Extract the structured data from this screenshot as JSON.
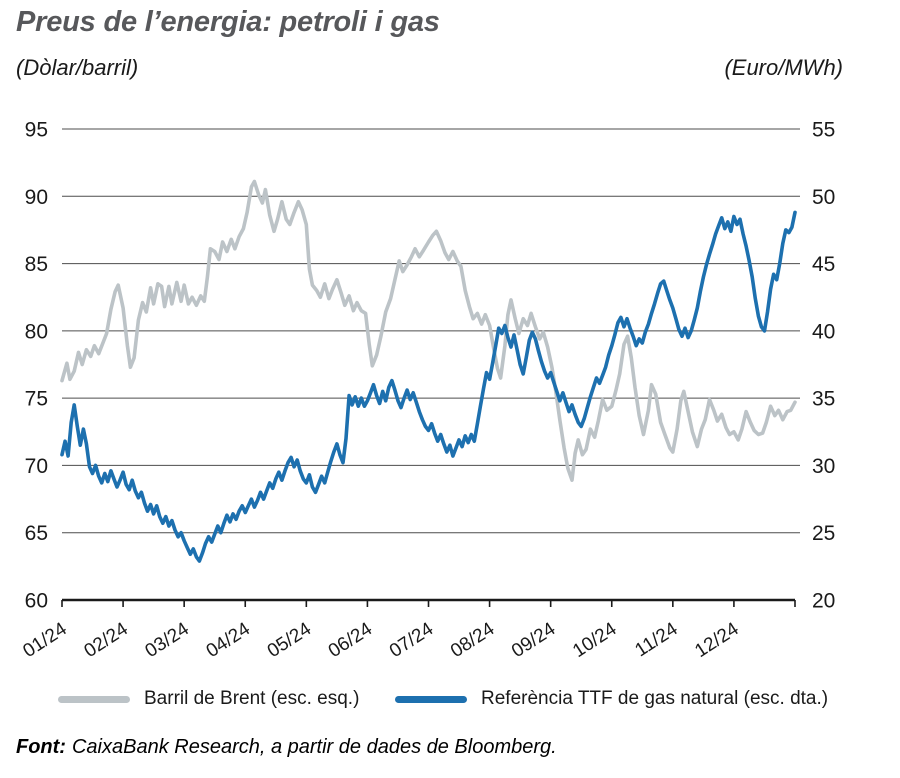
{
  "header": {
    "title": "Preus de l’energia: petroli i gas",
    "unit_left": "(Dòlar/barril)",
    "unit_right": "(Euro/MWh)"
  },
  "chart_data": {
    "type": "line",
    "title": "Preus de l’energia: petroli i gas",
    "subtitle_left": "(Dòlar/barril)",
    "subtitle_right": "(Euro/MWh)",
    "grid": "horizontal",
    "legend_position": "bottom",
    "x_axis": {
      "unit": "month of 2024 (fractional month index 0-12)",
      "tick_labels": [
        "01/24",
        "02/24",
        "03/24",
        "04/24",
        "05/24",
        "06/24",
        "07/24",
        "08/24",
        "09/24",
        "10/24",
        "11/24",
        "12/24"
      ]
    },
    "left_axis": {
      "label": "(Dòlar/barril)",
      "min": 60,
      "max": 95,
      "ticks": [
        60,
        65,
        70,
        75,
        80,
        85,
        90,
        95
      ]
    },
    "right_axis": {
      "label": "(Euro/MWh)",
      "min": 20,
      "max": 55,
      "ticks": [
        20,
        25,
        30,
        35,
        40,
        45,
        50,
        55
      ]
    },
    "series": [
      {
        "name": "Barril de Brent (esc. esq.)",
        "axis": "left",
        "color": "#bcc3c7",
        "points_format": "flat [month,value,...]",
        "points": [
          0,
          76.3,
          0.08,
          77.6,
          0.13,
          76.4,
          0.2,
          77.0,
          0.27,
          78.4,
          0.33,
          77.5,
          0.4,
          78.6,
          0.47,
          78.1,
          0.53,
          78.9,
          0.6,
          78.3,
          0.67,
          79.1,
          0.73,
          79.8,
          0.8,
          81.6,
          0.87,
          82.9,
          0.92,
          83.4,
          1.0,
          81.7,
          1.07,
          78.9,
          1.12,
          77.3,
          1.18,
          78.0,
          1.25,
          80.8,
          1.32,
          82.1,
          1.38,
          81.4,
          1.45,
          83.2,
          1.5,
          82.0,
          1.57,
          83.5,
          1.63,
          83.3,
          1.68,
          81.8,
          1.75,
          83.3,
          1.8,
          82.0,
          1.88,
          83.6,
          1.95,
          82.2,
          2.0,
          83.4,
          2.07,
          82.0,
          2.13,
          82.5,
          2.2,
          81.9,
          2.27,
          82.6,
          2.33,
          82.2,
          2.38,
          84.0,
          2.43,
          86.1,
          2.5,
          85.9,
          2.57,
          85.3,
          2.63,
          86.6,
          2.7,
          85.9,
          2.77,
          86.8,
          2.83,
          86.1,
          2.9,
          87.0,
          2.97,
          87.6,
          3.03,
          88.8,
          3.1,
          90.7,
          3.15,
          91.1,
          3.22,
          90.1,
          3.28,
          89.5,
          3.33,
          90.5,
          3.4,
          88.6,
          3.47,
          87.4,
          3.53,
          88.3,
          3.6,
          89.6,
          3.67,
          88.3,
          3.73,
          87.9,
          3.8,
          88.8,
          3.87,
          89.6,
          3.93,
          89.0,
          4.0,
          87.9,
          4.05,
          84.6,
          4.1,
          83.4,
          4.17,
          83.0,
          4.23,
          82.5,
          4.3,
          83.5,
          4.37,
          82.4,
          4.43,
          83.1,
          4.5,
          83.8,
          4.57,
          82.8,
          4.63,
          81.9,
          4.7,
          82.6,
          4.77,
          81.5,
          4.83,
          82.1,
          4.9,
          81.5,
          4.97,
          81.3,
          5.03,
          79.0,
          5.08,
          77.4,
          5.15,
          78.2,
          5.22,
          79.6,
          5.3,
          81.4,
          5.38,
          82.4,
          5.45,
          83.8,
          5.52,
          85.2,
          5.58,
          84.4,
          5.65,
          84.9,
          5.72,
          85.5,
          5.78,
          86.1,
          5.85,
          85.5,
          5.92,
          86.0,
          6.0,
          86.6,
          6.07,
          87.1,
          6.13,
          87.4,
          6.2,
          86.7,
          6.27,
          85.8,
          6.33,
          85.3,
          6.4,
          85.9,
          6.47,
          85.2,
          6.53,
          84.8,
          6.6,
          83.0,
          6.67,
          81.8,
          6.73,
          80.9,
          6.8,
          81.3,
          6.87,
          80.5,
          6.93,
          81.2,
          7.0,
          80.4,
          7.07,
          78.6,
          7.13,
          77.2,
          7.18,
          76.5,
          7.25,
          78.9,
          7.3,
          81.2,
          7.35,
          82.3,
          7.42,
          80.9,
          7.48,
          79.8,
          7.55,
          80.9,
          7.62,
          80.4,
          7.68,
          81.3,
          7.75,
          80.3,
          7.82,
          79.4,
          7.88,
          79.9,
          7.95,
          78.8,
          8.02,
          77.3,
          8.08,
          75.6,
          8.15,
          73.4,
          8.22,
          71.3,
          8.28,
          69.8,
          8.35,
          68.9,
          8.4,
          70.9,
          8.45,
          71.9,
          8.52,
          70.8,
          8.58,
          71.2,
          8.65,
          72.7,
          8.72,
          72.1,
          8.78,
          73.3,
          8.85,
          74.9,
          8.92,
          74.1,
          9.0,
          74.4,
          9.07,
          75.6,
          9.13,
          76.8,
          9.2,
          79.0,
          9.26,
          79.6,
          9.32,
          78.0,
          9.38,
          75.8,
          9.45,
          73.7,
          9.52,
          72.3,
          9.6,
          74.1,
          9.65,
          76.0,
          9.72,
          75.3,
          9.8,
          73.2,
          9.87,
          72.3,
          9.95,
          71.3,
          10.0,
          71.0,
          10.07,
          72.7,
          10.13,
          74.8,
          10.18,
          75.5,
          10.25,
          74.0,
          10.32,
          72.5,
          10.4,
          71.4,
          10.47,
          72.7,
          10.53,
          73.4,
          10.6,
          74.9,
          10.67,
          74.1,
          10.73,
          73.3,
          10.8,
          73.8,
          10.87,
          72.8,
          10.93,
          72.3,
          11.0,
          72.5,
          11.07,
          71.9,
          11.13,
          72.7,
          11.2,
          74.0,
          11.27,
          73.2,
          11.33,
          72.6,
          11.4,
          72.3,
          11.47,
          72.4,
          11.53,
          73.2,
          11.6,
          74.4,
          11.67,
          73.7,
          11.73,
          74.1,
          11.8,
          73.4,
          11.87,
          74.0,
          11.93,
          74.1,
          12.0,
          74.7
        ]
      },
      {
        "name": "Referència TTF de gas natural (esc. dta.)",
        "axis": "right",
        "color": "#1d70af",
        "points_format": "flat [month,value,...]",
        "points": [
          0,
          30.8,
          0.05,
          31.8,
          0.1,
          30.7,
          0.15,
          33.2,
          0.2,
          34.5,
          0.25,
          32.9,
          0.3,
          31.5,
          0.35,
          32.7,
          0.4,
          31.6,
          0.45,
          29.9,
          0.5,
          29.4,
          0.55,
          30.0,
          0.6,
          29.2,
          0.65,
          28.7,
          0.7,
          29.4,
          0.75,
          28.8,
          0.8,
          29.6,
          0.85,
          29.0,
          0.9,
          28.4,
          0.95,
          28.9,
          1.0,
          29.5,
          1.05,
          28.6,
          1.1,
          28.2,
          1.15,
          28.9,
          1.2,
          28.1,
          1.25,
          27.6,
          1.3,
          28.0,
          1.35,
          27.2,
          1.4,
          26.6,
          1.45,
          27.1,
          1.5,
          26.4,
          1.55,
          27.0,
          1.6,
          26.2,
          1.65,
          25.7,
          1.7,
          26.2,
          1.75,
          25.5,
          1.8,
          25.9,
          1.85,
          25.2,
          1.9,
          24.7,
          1.95,
          25.0,
          2.0,
          24.4,
          2.05,
          23.9,
          2.1,
          23.4,
          2.15,
          23.8,
          2.2,
          23.2,
          2.25,
          22.9,
          2.3,
          23.5,
          2.35,
          24.2,
          2.4,
          24.7,
          2.45,
          24.3,
          2.5,
          24.9,
          2.55,
          25.5,
          2.6,
          25.0,
          2.65,
          25.7,
          2.7,
          26.3,
          2.75,
          25.8,
          2.8,
          26.4,
          2.85,
          26.0,
          2.9,
          26.6,
          2.95,
          27.0,
          3.0,
          26.5,
          3.05,
          27.0,
          3.1,
          27.5,
          3.15,
          26.9,
          3.2,
          27.4,
          3.25,
          28.0,
          3.3,
          27.5,
          3.35,
          28.1,
          3.4,
          28.7,
          3.45,
          28.3,
          3.5,
          29.0,
          3.55,
          29.5,
          3.6,
          28.9,
          3.65,
          29.6,
          3.7,
          30.2,
          3.75,
          30.6,
          3.8,
          29.9,
          3.85,
          30.4,
          3.9,
          29.6,
          3.95,
          29.0,
          4.0,
          28.7,
          4.05,
          29.3,
          4.1,
          28.4,
          4.15,
          28.0,
          4.2,
          28.6,
          4.25,
          29.2,
          4.3,
          28.7,
          4.35,
          29.5,
          4.4,
          30.3,
          4.45,
          31.0,
          4.5,
          31.6,
          4.55,
          30.8,
          4.6,
          30.2,
          4.65,
          32.0,
          4.7,
          35.2,
          4.75,
          34.5,
          4.8,
          35.1,
          4.85,
          34.4,
          4.9,
          35.0,
          4.95,
          34.4,
          5.0,
          34.8,
          5.05,
          35.4,
          5.1,
          36.0,
          5.15,
          35.2,
          5.2,
          34.6,
          5.25,
          35.5,
          5.3,
          34.8,
          5.35,
          35.8,
          5.4,
          36.3,
          5.45,
          35.6,
          5.5,
          34.8,
          5.55,
          34.3,
          5.6,
          35.0,
          5.65,
          35.6,
          5.7,
          34.9,
          5.75,
          35.4,
          5.8,
          34.7,
          5.85,
          34.0,
          5.9,
          33.4,
          5.95,
          32.9,
          6.0,
          32.6,
          6.05,
          33.1,
          6.1,
          32.4,
          6.15,
          31.8,
          6.2,
          32.3,
          6.25,
          31.6,
          6.3,
          31.0,
          6.35,
          31.5,
          6.4,
          30.7,
          6.45,
          31.3,
          6.5,
          31.9,
          6.55,
          31.4,
          6.6,
          32.2,
          6.65,
          31.7,
          6.7,
          32.3,
          6.75,
          31.8,
          6.8,
          33.1,
          6.85,
          34.4,
          6.9,
          35.7,
          6.95,
          36.9,
          7.0,
          36.4,
          7.05,
          37.6,
          7.1,
          38.9,
          7.15,
          40.2,
          7.2,
          39.8,
          7.25,
          40.4,
          7.3,
          39.5,
          7.35,
          38.8,
          7.4,
          39.7,
          7.45,
          38.6,
          7.5,
          37.5,
          7.55,
          36.8,
          7.6,
          38.0,
          7.65,
          39.3,
          7.7,
          39.9,
          7.75,
          39.4,
          7.8,
          38.5,
          7.85,
          37.7,
          7.9,
          37.0,
          7.95,
          36.5,
          8.0,
          36.9,
          8.05,
          36.2,
          8.1,
          35.5,
          8.15,
          34.8,
          8.2,
          35.4,
          8.25,
          34.7,
          8.3,
          34.0,
          8.35,
          34.5,
          8.4,
          33.8,
          8.45,
          33.2,
          8.5,
          32.9,
          8.55,
          33.5,
          8.6,
          34.3,
          8.65,
          35.1,
          8.7,
          35.8,
          8.75,
          36.5,
          8.8,
          36.1,
          8.85,
          36.7,
          8.9,
          37.3,
          8.95,
          38.2,
          9.0,
          38.9,
          9.05,
          39.7,
          9.1,
          40.6,
          9.15,
          41.0,
          9.2,
          40.3,
          9.25,
          40.9,
          9.3,
          40.2,
          9.35,
          39.6,
          9.4,
          38.9,
          9.45,
          39.4,
          9.5,
          39.1,
          9.55,
          39.9,
          9.6,
          40.5,
          9.65,
          41.3,
          9.7,
          42.0,
          9.75,
          42.8,
          9.8,
          43.5,
          9.85,
          43.7,
          9.9,
          43.0,
          9.95,
          42.3,
          10.0,
          41.7,
          10.05,
          40.9,
          10.1,
          40.1,
          10.15,
          39.6,
          10.2,
          40.2,
          10.25,
          39.5,
          10.3,
          40.0,
          10.35,
          40.8,
          10.4,
          41.7,
          10.45,
          42.9,
          10.5,
          44.0,
          10.55,
          44.9,
          10.6,
          45.7,
          10.65,
          46.4,
          10.7,
          47.2,
          10.75,
          47.8,
          10.8,
          48.4,
          10.85,
          47.6,
          10.9,
          48.1,
          10.95,
          47.4,
          11.0,
          48.5,
          11.05,
          47.9,
          11.1,
          48.3,
          11.15,
          47.2,
          11.2,
          46.3,
          11.25,
          45.2,
          11.3,
          44.0,
          11.35,
          42.4,
          11.4,
          41.1,
          11.45,
          40.3,
          11.5,
          40.0,
          11.55,
          41.4,
          11.6,
          43.1,
          11.65,
          44.2,
          11.7,
          43.8,
          11.75,
          45.0,
          11.8,
          46.5,
          11.85,
          47.5,
          11.9,
          47.3,
          11.95,
          47.7,
          12.0,
          48.8
        ]
      }
    ]
  },
  "legend": {
    "items": [
      {
        "label": "Barril de Brent (esc. esq.)",
        "color": "#bcc3c7"
      },
      {
        "label": "Referència TTF de gas natural (esc. dta.)",
        "color": "#1d70af"
      }
    ]
  },
  "footer": {
    "label": "Font:",
    "text": "CaixaBank Research, a partir de dades de Bloomberg."
  },
  "colors": {
    "brent": "#bcc3c7",
    "ttf": "#1d70af",
    "gridline": "#4d4d4d",
    "axis": "#1a1a1a",
    "title": "#57585b"
  }
}
